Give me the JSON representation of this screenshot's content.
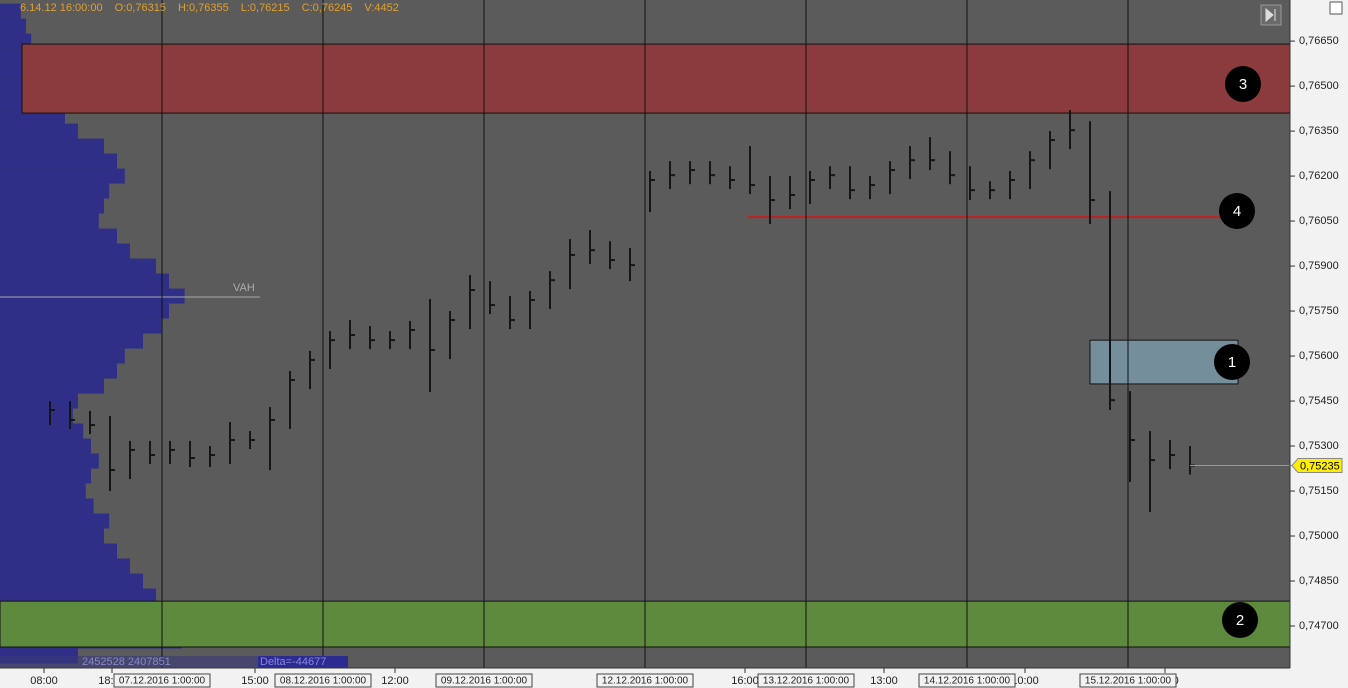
{
  "chart_data": {
    "type": "ohlc",
    "header": [
      "6.14.12 16:00:00",
      "O:0,76315",
      "H:0,76355",
      "L:0,76215",
      "C:0,76245",
      "V:4452"
    ],
    "x": [
      0,
      1,
      2,
      3,
      4,
      5,
      6,
      7,
      8,
      9,
      10,
      11,
      12,
      13,
      14,
      15,
      16,
      17,
      18,
      19,
      20,
      21,
      22,
      23,
      24,
      25,
      26,
      27,
      28,
      29,
      30,
      31,
      32,
      33,
      34,
      35,
      36,
      37,
      38,
      39,
      40,
      41,
      42,
      43,
      44,
      45,
      46,
      47,
      48,
      49,
      50,
      51,
      52,
      53,
      54,
      55,
      56,
      57
    ],
    "high": [
      0.7545,
      0.7545,
      0.75417,
      0.754,
      0.75317,
      0.75317,
      0.75317,
      0.75317,
      0.753,
      0.7538,
      0.7535,
      0.7543,
      0.7555,
      0.75617,
      0.75683,
      0.7572,
      0.757,
      0.75683,
      0.75717,
      0.7579,
      0.7575,
      0.7587,
      0.7585,
      0.758,
      0.75817,
      0.75883,
      0.7599,
      0.7602,
      0.75983,
      0.7596,
      0.76217,
      0.7625,
      0.7625,
      0.7625,
      0.76233,
      0.763,
      0.762,
      0.762,
      0.76217,
      0.76233,
      0.76233,
      0.762,
      0.7625,
      0.763,
      0.7633,
      0.76283,
      0.76233,
      0.76183,
      0.76217,
      0.76283,
      0.7635,
      0.7642,
      0.76383,
      0.7615,
      0.75483,
      0.7535,
      0.7532,
      0.753
    ],
    "low": [
      0.7537,
      0.75357,
      0.7534,
      0.7515,
      0.7519,
      0.7524,
      0.7524,
      0.7523,
      0.7523,
      0.7524,
      0.7529,
      0.7522,
      0.75357,
      0.7549,
      0.75557,
      0.75623,
      0.75623,
      0.75623,
      0.75623,
      0.7548,
      0.7559,
      0.7569,
      0.7574,
      0.7569,
      0.7569,
      0.75757,
      0.75823,
      0.75907,
      0.7589,
      0.7585,
      0.7608,
      0.76157,
      0.76173,
      0.76173,
      0.76157,
      0.7614,
      0.7604,
      0.7609,
      0.76107,
      0.76157,
      0.76123,
      0.76123,
      0.7614,
      0.7619,
      0.7622,
      0.76173,
      0.7612,
      0.76123,
      0.76123,
      0.76157,
      0.76223,
      0.7629,
      0.7604,
      0.7542,
      0.7518,
      0.7508,
      0.75223,
      0.75205
    ],
    "close": [
      0.7542,
      0.75387,
      0.7537,
      0.7522,
      0.75287,
      0.7527,
      0.75287,
      0.7526,
      0.7527,
      0.7532,
      0.7532,
      0.75387,
      0.7552,
      0.75587,
      0.75653,
      0.7567,
      0.75653,
      0.75653,
      0.75687,
      0.7562,
      0.7572,
      0.7582,
      0.7577,
      0.7572,
      0.75787,
      0.75853,
      0.75937,
      0.75953,
      0.7592,
      0.75903,
      0.76187,
      0.76203,
      0.7622,
      0.76203,
      0.76187,
      0.7617,
      0.7612,
      0.76137,
      0.76187,
      0.76203,
      0.76153,
      0.7617,
      0.7622,
      0.76253,
      0.76253,
      0.76203,
      0.76153,
      0.76153,
      0.76187,
      0.76253,
      0.7632,
      0.76353,
      0.7612,
      0.75453,
      0.7532,
      0.75253,
      0.7527,
      0.75235
    ],
    "color": "#151515",
    "xlim": [
      -2.5,
      62
    ],
    "ylim": [
      0.7456,
      0.76787
    ],
    "yticks": [
      {
        "value": 0.7665,
        "label": "0,76650"
      },
      {
        "value": 0.765,
        "label": "0,76500"
      },
      {
        "value": 0.7635,
        "label": "0,76350"
      },
      {
        "value": 0.762,
        "label": "0,76200"
      },
      {
        "value": 0.7605,
        "label": "0,76050"
      },
      {
        "value": 0.759,
        "label": "0,75900"
      },
      {
        "value": 0.7575,
        "label": "0,75750"
      },
      {
        "value": 0.756,
        "label": "0,75600"
      },
      {
        "value": 0.7545,
        "label": "0,75450"
      },
      {
        "value": 0.753,
        "label": "0,75300"
      },
      {
        "value": 0.7515,
        "label": "0,75150"
      },
      {
        "value": 0.75,
        "label": "0,75000"
      },
      {
        "value": 0.7485,
        "label": "0,74850"
      },
      {
        "value": 0.747,
        "label": "0,74700"
      }
    ],
    "xticks": [
      {
        "value": -0.3,
        "label": "08:00"
      },
      {
        "value": 3.1,
        "label": "18:00"
      },
      {
        "value": 10.25,
        "label": "15:00"
      },
      {
        "value": 17.25,
        "label": "12:00"
      },
      {
        "value": 34.75,
        "label": "16:00"
      },
      {
        "value": 41.7,
        "label": "13:00"
      },
      {
        "value": 48.75,
        "label": "10:00"
      },
      {
        "value": 55.75,
        "label": "07:00"
      }
    ],
    "sessions": [
      {
        "value": 5.6,
        "label": "07.12.2016 1:00:00"
      },
      {
        "value": 13.65,
        "label": "08.12.2016 1:00:00"
      },
      {
        "value": 21.7,
        "label": "09.12.2016 1:00:00"
      },
      {
        "value": 29.75,
        "label": "12.12.2016 1:00:00"
      },
      {
        "value": 37.8,
        "label": "13.12.2016 1:00:00"
      },
      {
        "value": 45.85,
        "label": "14.12.2016 1:00:00"
      },
      {
        "value": 53.9,
        "label": "15.12.2016 1:00:00"
      }
    ],
    "zones": [
      {
        "label": "3",
        "low": 0.7641,
        "high": 0.7664,
        "color": "#8b3b3b"
      },
      {
        "label": "2",
        "low": 0.7463,
        "high": 0.74783,
        "color": "#5e8a3e"
      },
      {
        "label": "1",
        "low": 0.75507,
        "high": 0.75653,
        "color": "#7d9fb0"
      }
    ],
    "level": {
      "label": "4",
      "price": 0.76063,
      "color": "#c0201e"
    },
    "vah": {
      "label": "VAH",
      "price": 0.75797
    },
    "last_price": {
      "value": 0.75235,
      "label": "0,75235"
    },
    "profile_color": "#2a2a8c",
    "profile_prices": [
      0.7675,
      0.767,
      0.7665,
      0.766,
      0.7655,
      0.765,
      0.7645,
      0.764,
      0.7635,
      0.763,
      0.7625,
      0.762,
      0.7615,
      0.761,
      0.7605,
      0.76,
      0.7595,
      0.759,
      0.7585,
      0.758,
      0.7575,
      0.757,
      0.7565,
      0.756,
      0.7555,
      0.755,
      0.7545,
      0.754,
      0.7535,
      0.753,
      0.7525,
      0.752,
      0.7515,
      0.751,
      0.7505,
      0.75,
      0.7495,
      0.749,
      0.7485,
      0.748,
      0.7475,
      0.747,
      0.7465,
      0.746
    ],
    "profile_volumes": [
      8,
      10,
      12,
      15,
      18,
      20,
      22,
      25,
      30,
      40,
      45,
      48,
      42,
      40,
      38,
      45,
      50,
      60,
      65,
      71,
      65,
      62,
      55,
      48,
      45,
      40,
      30,
      28,
      32,
      35,
      38,
      35,
      33,
      36,
      42,
      40,
      45,
      50,
      55,
      60,
      75,
      100,
      70,
      30
    ],
    "profile_totals": "2452528 2407851",
    "delta": "Delta=-44677"
  }
}
